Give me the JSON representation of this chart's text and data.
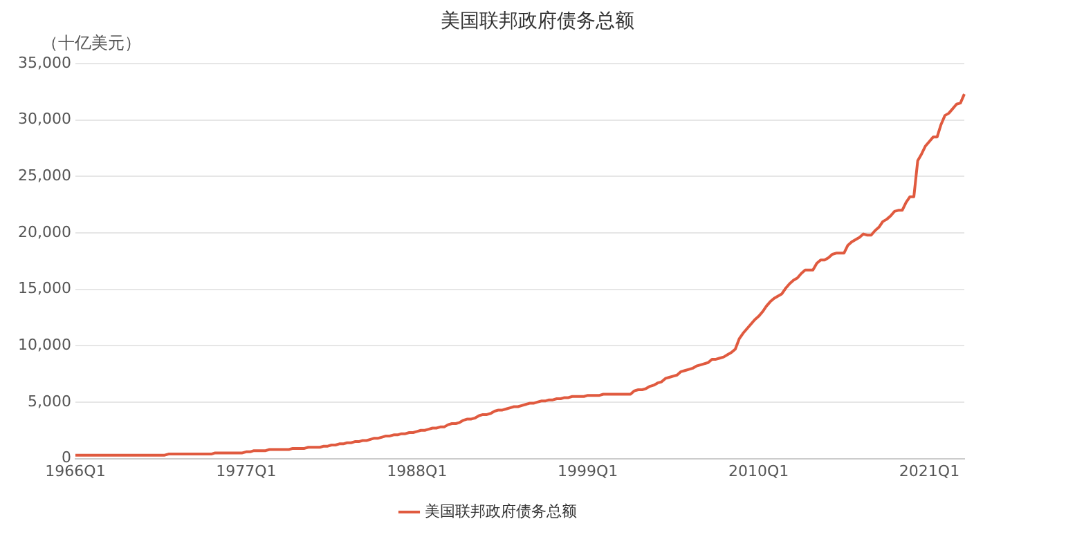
{
  "chart_data": {
    "type": "line",
    "title": "美国联邦政府债务总额",
    "ylabel": "（十亿美元）",
    "categories": [
      "1966Q1",
      null,
      null,
      null,
      null,
      null,
      null,
      null,
      null,
      null,
      null,
      null,
      null,
      null,
      null,
      null,
      null,
      null,
      null,
      null,
      null,
      null,
      null,
      null,
      null,
      null,
      null,
      null,
      null,
      null,
      null,
      null,
      null,
      null,
      null,
      null,
      null,
      null,
      null,
      null,
      null,
      null,
      null,
      null,
      "1977Q1",
      null,
      null,
      null,
      null,
      null,
      null,
      null,
      null,
      null,
      null,
      null,
      null,
      null,
      null,
      null,
      null,
      null,
      null,
      null,
      null,
      null,
      null,
      null,
      null,
      null,
      null,
      null,
      null,
      null,
      null,
      null,
      null,
      null,
      null,
      null,
      null,
      null,
      null,
      null,
      null,
      null,
      null,
      null,
      "1988Q1",
      null,
      null,
      null,
      null,
      null,
      null,
      null,
      null,
      null,
      null,
      null,
      null,
      null,
      null,
      null,
      null,
      null,
      null,
      null,
      null,
      null,
      null,
      null,
      null,
      null,
      null,
      null,
      null,
      null,
      null,
      null,
      null,
      null,
      null,
      null,
      null,
      null,
      null,
      null,
      null,
      null,
      null,
      null,
      "1999Q1",
      null,
      null,
      null,
      null,
      null,
      null,
      null,
      null,
      null,
      null,
      null,
      null,
      null,
      null,
      null,
      null,
      null,
      null,
      null,
      null,
      null,
      null,
      null,
      null,
      null,
      null,
      null,
      null,
      null,
      null,
      null,
      null,
      null,
      null,
      null,
      null,
      null,
      null,
      null,
      null,
      null,
      null,
      null,
      "2010Q1",
      null,
      null,
      null,
      null,
      null,
      null,
      null,
      null,
      null,
      null,
      null,
      null,
      null,
      null,
      null,
      null,
      null,
      null,
      null,
      null,
      null,
      null,
      null,
      null,
      null,
      null,
      null,
      null,
      null,
      null,
      null,
      null,
      null,
      null,
      null,
      null,
      null,
      null,
      null,
      null,
      null,
      null,
      null,
      "2021Q1",
      null,
      null,
      null,
      null,
      null,
      null,
      null,
      null,
      null
    ],
    "series": [
      {
        "name": "美国联邦政府债务总额",
        "color": "#e05a3f",
        "values": [
          300,
          300,
          300,
          300,
          300,
          300,
          300,
          300,
          300,
          300,
          300,
          300,
          300,
          300,
          300,
          300,
          300,
          300,
          300,
          300,
          300,
          300,
          300,
          300,
          400,
          400,
          400,
          400,
          400,
          400,
          400,
          400,
          400,
          400,
          400,
          400,
          500,
          500,
          500,
          500,
          500,
          500,
          500,
          500,
          600,
          600,
          700,
          700,
          700,
          700,
          800,
          800,
          800,
          800,
          800,
          800,
          900,
          900,
          900,
          900,
          1000,
          1000,
          1000,
          1000,
          1100,
          1100,
          1200,
          1200,
          1300,
          1300,
          1400,
          1400,
          1500,
          1500,
          1600,
          1600,
          1700,
          1800,
          1800,
          1900,
          2000,
          2000,
          2100,
          2100,
          2200,
          2200,
          2300,
          2300,
          2400,
          2500,
          2500,
          2600,
          2700,
          2700,
          2800,
          2800,
          3000,
          3100,
          3100,
          3200,
          3400,
          3500,
          3500,
          3600,
          3800,
          3900,
          3900,
          4000,
          4200,
          4300,
          4300,
          4400,
          4500,
          4600,
          4600,
          4700,
          4800,
          4900,
          4900,
          5000,
          5100,
          5100,
          5200,
          5200,
          5300,
          5300,
          5400,
          5400,
          5500,
          5500,
          5500,
          5500,
          5600,
          5600,
          5600,
          5600,
          5700,
          5700,
          5700,
          5700,
          5700,
          5700,
          5700,
          5700,
          6000,
          6100,
          6100,
          6200,
          6400,
          6500,
          6700,
          6800,
          7100,
          7200,
          7300,
          7400,
          7700,
          7800,
          7900,
          8000,
          8200,
          8300,
          8400,
          8500,
          8800,
          8800,
          8900,
          9000,
          9200,
          9400,
          9700,
          10600,
          11100,
          11500,
          11900,
          12300,
          12600,
          13000,
          13500,
          13900,
          14200,
          14400,
          14600,
          15100,
          15500,
          15800,
          16000,
          16400,
          16700,
          16700,
          16700,
          17300,
          17600,
          17600,
          17800,
          18100,
          18200,
          18200,
          18200,
          18900,
          19200,
          19400,
          19600,
          19900,
          19800,
          19800,
          20200,
          20500,
          21000,
          21200,
          21500,
          21900,
          22000,
          22000,
          22700,
          23200,
          23200,
          26400,
          27000,
          27700,
          28100,
          28500,
          28500,
          29600,
          30400,
          30600,
          31000,
          31400,
          31500,
          32300
        ]
      }
    ],
    "ylim": [
      0,
      35000
    ],
    "yticks": [
      0,
      {
        "value": 5000,
        "label": "5,000"
      },
      {
        "value": 10000,
        "label": "10,000"
      },
      {
        "value": 15000,
        "label": "15,000"
      },
      {
        "value": 20000,
        "label": "20,000"
      },
      {
        "value": 25000,
        "label": "25,000"
      },
      {
        "value": 30000,
        "label": "30,000"
      },
      {
        "value": 35000,
        "label": "35,000"
      }
    ],
    "grid": "y",
    "legend": "bottom",
    "line_style": "solid"
  }
}
